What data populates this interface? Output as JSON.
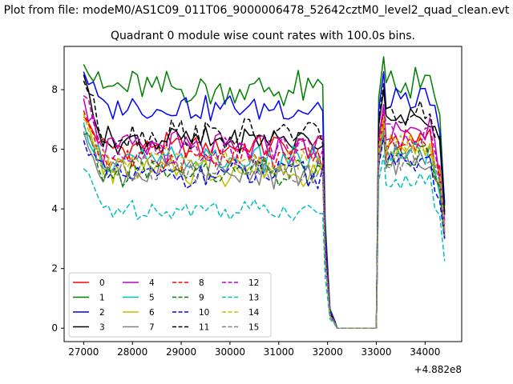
{
  "figure": {
    "suptitle": "Plot from file: modeM0/AS1C09_011T06_9000006478_52642cztM0_level2_quad_clean.evt",
    "title": "Quadrant 0 module wise count rates with 100.0s bins.",
    "offset_label": "+4.882e8"
  },
  "chart_data": {
    "type": "line",
    "title": "Quadrant 0 module wise count rates with 100.0s bins.",
    "xlabel": "",
    "ylabel": "",
    "x_offset": 488200000,
    "xlim": [
      26600,
      34750
    ],
    "ylim": [
      -0.45,
      9.45
    ],
    "x_ticks": [
      27000,
      28000,
      29000,
      30000,
      31000,
      32000,
      33000,
      34000
    ],
    "y_ticks": [
      0,
      2,
      4,
      6,
      8
    ],
    "x_tick_labels": [
      "27000",
      "28000",
      "29000",
      "30000",
      "31000",
      "32000",
      "33000",
      "34000"
    ],
    "y_tick_labels": [
      "0",
      "2",
      "4",
      "6",
      "8"
    ],
    "bin_seconds": 100,
    "segments": [
      {
        "x_start": 27000,
        "x_end": 31900,
        "n": 50
      },
      {
        "x_start": 31950,
        "x_end": 32150,
        "n": 3
      },
      {
        "x_start": 32200,
        "x_end": 33000,
        "n": 9
      },
      {
        "x_start": 33050,
        "x_end": 33150,
        "n": 2
      },
      {
        "x_start": 33200,
        "x_end": 34300,
        "n": 12
      },
      {
        "x_start": 34400,
        "x_end": 34400,
        "n": 1
      }
    ],
    "legend_location": "lower-left",
    "series": [
      {
        "name": "0",
        "color": "#ff0000",
        "dash": "solid",
        "base": 6.1,
        "start": 7.1,
        "spread": 0.4,
        "gap_level": 0.0,
        "peak": 7.2,
        "end": 3.2
      },
      {
        "name": "1",
        "color": "#008000",
        "dash": "solid",
        "base": 8.0,
        "start": 8.85,
        "spread": 0.55,
        "gap_level": 0.0,
        "peak": 9.1,
        "end": 4.1
      },
      {
        "name": "2",
        "color": "#0000ff",
        "dash": "solid",
        "base": 7.4,
        "start": 8.6,
        "spread": 0.4,
        "gap_level": 0.0,
        "peak": 8.6,
        "end": 4.2
      },
      {
        "name": "3",
        "color": "#000000",
        "dash": "solid",
        "base": 6.3,
        "start": 8.5,
        "spread": 0.4,
        "gap_level": 0.0,
        "peak": 8.0,
        "end": 3.8
      },
      {
        "name": "4",
        "color": "#bf00bf",
        "dash": "solid",
        "base": 6.0,
        "start": 7.7,
        "spread": 0.55,
        "gap_level": 0.0,
        "peak": 7.5,
        "end": 3.6
      },
      {
        "name": "5",
        "color": "#00bfbf",
        "dash": "solid",
        "base": 5.6,
        "start": 6.9,
        "spread": 0.45,
        "gap_level": 0.0,
        "peak": 6.8,
        "end": 3.0
      },
      {
        "name": "6",
        "color": "#bfbf00",
        "dash": "solid",
        "base": 5.3,
        "start": 7.0,
        "spread": 0.45,
        "gap_level": 0.0,
        "peak": 6.9,
        "end": 3.1
      },
      {
        "name": "7",
        "color": "#808080",
        "dash": "solid",
        "base": 5.2,
        "start": 6.6,
        "spread": 0.45,
        "gap_level": 0.0,
        "peak": 6.5,
        "end": 3.0
      },
      {
        "name": "8",
        "color": "#ff0000",
        "dash": "dashed",
        "base": 5.7,
        "start": 7.3,
        "spread": 0.45,
        "gap_level": 0.0,
        "peak": 7.0,
        "end": 3.3
      },
      {
        "name": "9",
        "color": "#008000",
        "dash": "dashed",
        "base": 5.2,
        "start": 6.5,
        "spread": 0.45,
        "gap_level": 0.0,
        "peak": 6.6,
        "end": 3.0
      },
      {
        "name": "10",
        "color": "#0000ff",
        "dash": "dashed",
        "base": 5.1,
        "start": 6.3,
        "spread": 0.45,
        "gap_level": 0.0,
        "peak": 6.4,
        "end": 3.0
      },
      {
        "name": "11",
        "color": "#000000",
        "dash": "dashed",
        "base": 6.5,
        "start": 8.3,
        "spread": 0.5,
        "gap_level": 0.0,
        "peak": 8.2,
        "end": 3.9
      },
      {
        "name": "12",
        "color": "#bf00bf",
        "dash": "dashed",
        "base": 6.0,
        "start": 7.8,
        "spread": 0.45,
        "gap_level": 0.0,
        "peak": 7.4,
        "end": 3.5
      },
      {
        "name": "13",
        "color": "#00bfbf",
        "dash": "dashed",
        "base": 4.0,
        "start": 5.35,
        "spread": 0.3,
        "gap_level": 0.0,
        "peak": 5.8,
        "end": 2.25
      },
      {
        "name": "14",
        "color": "#bfbf00",
        "dash": "dashed",
        "base": 5.6,
        "start": 7.2,
        "spread": 0.45,
        "gap_level": 0.0,
        "peak": 7.1,
        "end": 3.3
      },
      {
        "name": "15",
        "color": "#808080",
        "dash": "dashed",
        "base": 5.3,
        "start": 6.8,
        "spread": 0.45,
        "gap_level": 0.0,
        "peak": 6.6,
        "end": 3.1
      }
    ]
  }
}
